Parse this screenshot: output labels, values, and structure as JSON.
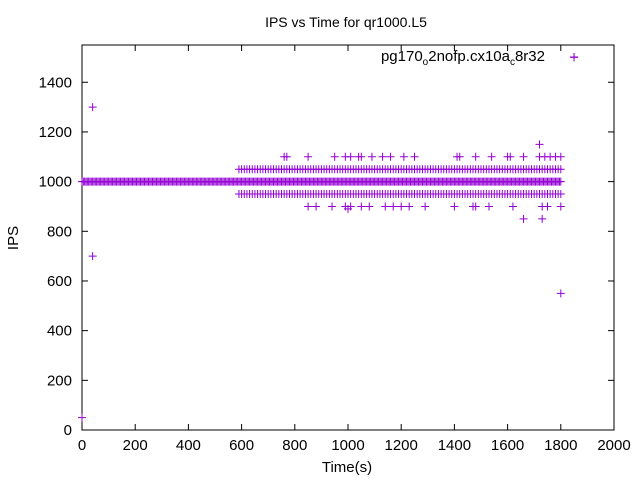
{
  "chart_data": {
    "type": "scatter",
    "title": "IPS vs Time for qr1000.L5",
    "xlabel": "Time(s)",
    "ylabel": "IPS",
    "xlim": [
      0,
      2000
    ],
    "ylim": [
      0,
      1550
    ],
    "xticks": [
      0,
      200,
      400,
      600,
      800,
      1000,
      1200,
      1400,
      1600,
      1800,
      2000
    ],
    "xtick_labels": [
      "0",
      "200",
      "400",
      "600",
      "800",
      "1000",
      "1200",
      "1400",
      "1600",
      "1800",
      "2000"
    ],
    "yticks": [
      0,
      200,
      400,
      600,
      800,
      1000,
      1200,
      1400
    ],
    "ytick_labels": [
      "0",
      "200",
      "400",
      "600",
      "800",
      "1000",
      "1200",
      "1400"
    ],
    "grid": false,
    "legend": {
      "placement": "top-right",
      "parts": [
        "pg170",
        "o",
        "2nofp.cx10a",
        "c",
        "8r32"
      ],
      "color": "#9400d3"
    },
    "series": [
      {
        "color": "#9400d3",
        "marker": "plus",
        "dense_runs": [
          {
            "y": 1000,
            "x_start": 0,
            "x_end": 1800,
            "step": 5
          },
          {
            "y": 1050,
            "x_start": 590,
            "x_end": 1800,
            "step": 10
          },
          {
            "y": 950,
            "x_start": 590,
            "x_end": 1800,
            "step": 10
          }
        ],
        "points": [
          [
            0,
            50
          ],
          [
            40,
            1300
          ],
          [
            40,
            700
          ],
          [
            760,
            1100
          ],
          [
            770,
            1100
          ],
          [
            850,
            1100
          ],
          [
            950,
            1100
          ],
          [
            990,
            1100
          ],
          [
            1010,
            1100
          ],
          [
            1040,
            1100
          ],
          [
            1050,
            1100
          ],
          [
            1090,
            1100
          ],
          [
            1130,
            1100
          ],
          [
            1160,
            1100
          ],
          [
            1210,
            1100
          ],
          [
            1250,
            1100
          ],
          [
            1410,
            1100
          ],
          [
            1420,
            1100
          ],
          [
            1480,
            1100
          ],
          [
            1540,
            1100
          ],
          [
            1600,
            1100
          ],
          [
            1610,
            1100
          ],
          [
            1660,
            1100
          ],
          [
            1720,
            1100
          ],
          [
            1740,
            1100
          ],
          [
            1760,
            1100
          ],
          [
            1780,
            1100
          ],
          [
            1800,
            1100
          ],
          [
            1720,
            1150
          ],
          [
            1850,
            1500
          ],
          [
            850,
            900
          ],
          [
            880,
            900
          ],
          [
            940,
            900
          ],
          [
            990,
            900
          ],
          [
            1000,
            890
          ],
          [
            1010,
            900
          ],
          [
            1050,
            900
          ],
          [
            1080,
            900
          ],
          [
            1140,
            900
          ],
          [
            1170,
            900
          ],
          [
            1200,
            900
          ],
          [
            1230,
            900
          ],
          [
            1290,
            900
          ],
          [
            1400,
            900
          ],
          [
            1470,
            900
          ],
          [
            1480,
            900
          ],
          [
            1530,
            900
          ],
          [
            1620,
            900
          ],
          [
            1730,
            900
          ],
          [
            1750,
            900
          ],
          [
            1800,
            900
          ],
          [
            1660,
            850
          ],
          [
            1730,
            850
          ],
          [
            1800,
            550
          ]
        ]
      }
    ]
  }
}
